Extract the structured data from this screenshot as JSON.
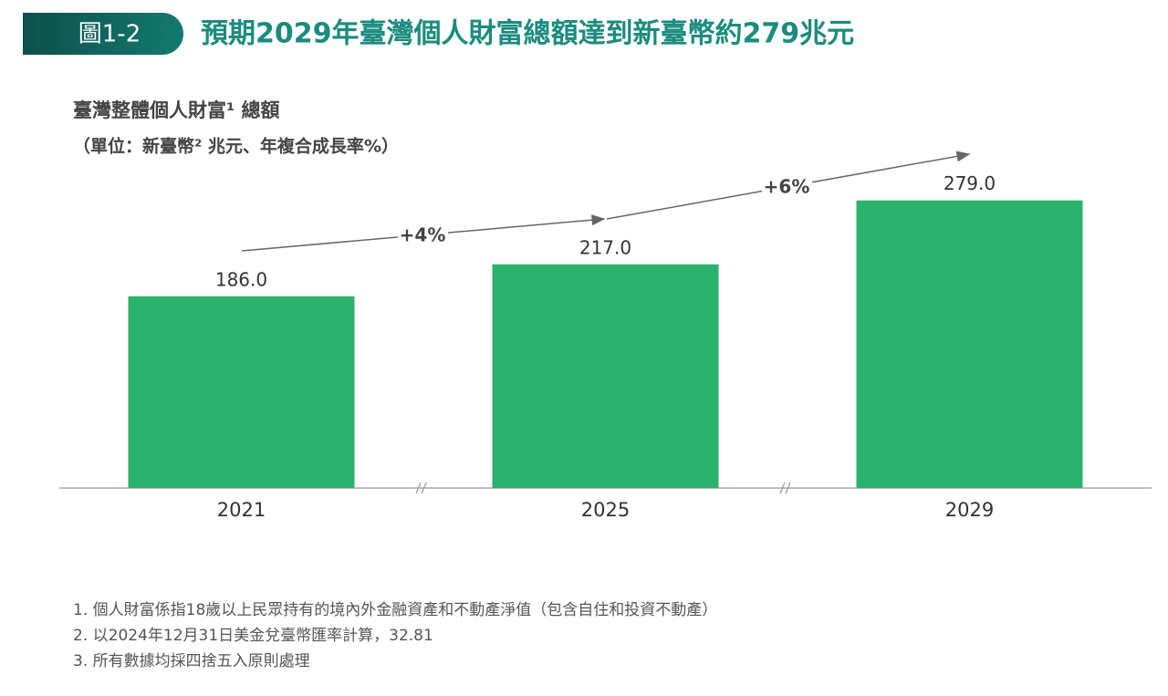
{
  "badge": "圖1-2",
  "heading": "預期2029年臺灣個人財富總額達到新臺幣約279兆元",
  "chart_data": {
    "type": "bar",
    "title": "臺灣整體個人財富¹ 總額",
    "subtitle": "（單位：新臺幣² 兆元、年複合成長率%）",
    "categories": [
      "2021",
      "2025",
      "2029"
    ],
    "values": [
      186,
      217,
      279
    ],
    "value_labels": [
      "186.0",
      "217.0",
      "279.0"
    ],
    "color": "#2bb26d",
    "ylim": [
      0,
      300
    ],
    "annotations": [
      "+4%",
      "+6%"
    ]
  },
  "footnotes": [
    "1. 個人財富係指18歲以上民眾持有的境內外金融資產和不動產淨值（包含自住和投資不動產）",
    "2. 以2024年12月31日美金兌臺幣匯率計算，32.81",
    "3. 所有數據均採四捨五入原則處理"
  ]
}
